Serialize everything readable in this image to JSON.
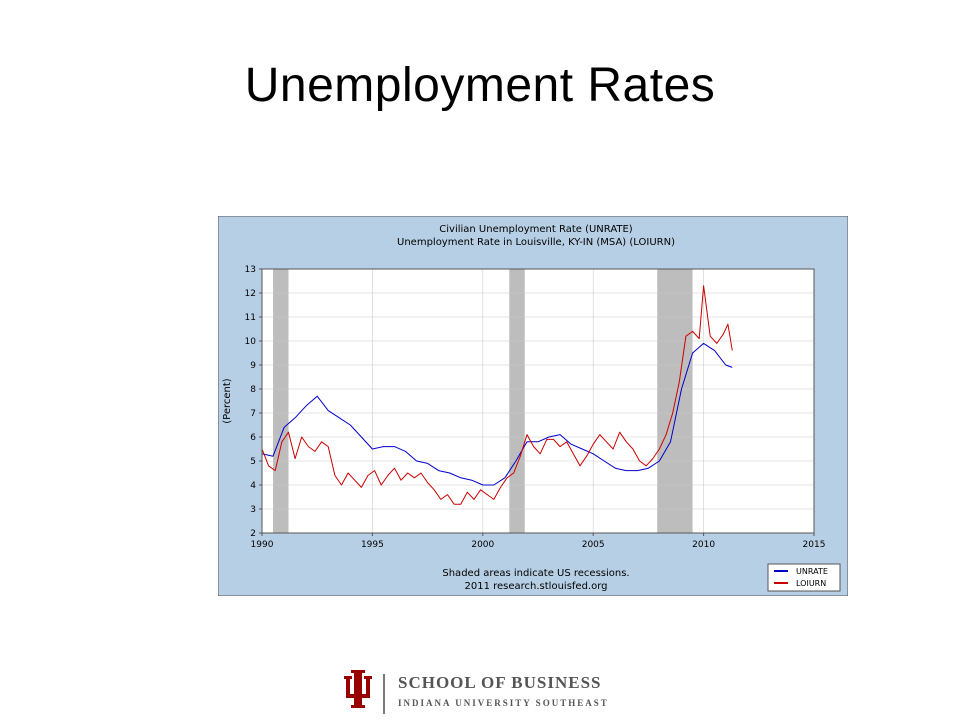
{
  "slide": {
    "title": "Unemployment Rates"
  },
  "colors": {
    "chart_bg": "#b7cfe5",
    "plot_bg": "#ffffff",
    "recession": "#bdbdbd",
    "unrate": "#0000cc",
    "loiurn": "#cc0000",
    "logo_red": "#990000"
  },
  "footer": {
    "logo_line1": "SCHOOL OF BUSINESS",
    "logo_line2": "INDIANA UNIVERSITY SOUTHEAST",
    "logo_icon": "iu-trident-icon"
  },
  "chart_data": {
    "type": "line",
    "title": "Civilian Unemployment Rate (UNRATE)",
    "subtitle": "Unemployment Rate in Louisville, KY-IN (MSA) (LOIURN)",
    "ylabel": "(Percent)",
    "xlabel": "",
    "xlim": [
      1990,
      2015
    ],
    "ylim": [
      2,
      13
    ],
    "x_ticks": [
      "1990",
      "1995",
      "2000",
      "2005",
      "2010",
      "2015"
    ],
    "y_ticks": [
      "2",
      "3",
      "4",
      "5",
      "6",
      "7",
      "8",
      "9",
      "10",
      "11",
      "12",
      "13"
    ],
    "grid": true,
    "legend_position": "bottom-right",
    "note_line1": "Shaded areas indicate US recessions.",
    "note_line2": "2011 research.stlouisfed.org",
    "recessions": [
      [
        1990.5,
        1991.2
      ],
      [
        2001.2,
        2001.9
      ],
      [
        2007.9,
        2009.5
      ]
    ],
    "series": [
      {
        "name": "UNRATE",
        "color": "#0000cc",
        "x": [
          1990.0,
          1990.5,
          1991.0,
          1991.5,
          1992.0,
          1992.5,
          1993.0,
          1993.5,
          1994.0,
          1994.5,
          1995.0,
          1995.5,
          1996.0,
          1996.5,
          1997.0,
          1997.5,
          1998.0,
          1998.5,
          1999.0,
          1999.5,
          2000.0,
          2000.5,
          2001.0,
          2001.5,
          2002.0,
          2002.5,
          2003.0,
          2003.5,
          2004.0,
          2004.5,
          2005.0,
          2005.5,
          2006.0,
          2006.5,
          2007.0,
          2007.5,
          2008.0,
          2008.5,
          2009.0,
          2009.5,
          2010.0,
          2010.5,
          2011.0,
          2011.3
        ],
        "values": [
          5.3,
          5.2,
          6.4,
          6.8,
          7.3,
          7.7,
          7.1,
          6.8,
          6.5,
          6.0,
          5.5,
          5.6,
          5.6,
          5.4,
          5.0,
          4.9,
          4.6,
          4.5,
          4.3,
          4.2,
          4.0,
          4.0,
          4.3,
          5.0,
          5.8,
          5.8,
          6.0,
          6.1,
          5.7,
          5.5,
          5.3,
          5.0,
          4.7,
          4.6,
          4.6,
          4.7,
          5.0,
          5.8,
          8.0,
          9.5,
          9.9,
          9.6,
          9.0,
          8.9
        ]
      },
      {
        "name": "LOIURN",
        "color": "#cc0000",
        "x": [
          1990.0,
          1990.3,
          1990.6,
          1990.9,
          1991.2,
          1991.5,
          1991.8,
          1992.1,
          1992.4,
          1992.7,
          1993.0,
          1993.3,
          1993.6,
          1993.9,
          1994.2,
          1994.5,
          1994.8,
          1995.1,
          1995.4,
          1995.7,
          1996.0,
          1996.3,
          1996.6,
          1996.9,
          1997.2,
          1997.5,
          1997.8,
          1998.1,
          1998.4,
          1998.7,
          1999.0,
          1999.3,
          1999.6,
          1999.9,
          2000.2,
          2000.5,
          2000.8,
          2001.1,
          2001.4,
          2001.7,
          2002.0,
          2002.3,
          2002.6,
          2002.9,
          2003.2,
          2003.5,
          2003.8,
          2004.1,
          2004.4,
          2004.7,
          2005.0,
          2005.3,
          2005.6,
          2005.9,
          2006.2,
          2006.5,
          2006.8,
          2007.1,
          2007.4,
          2007.7,
          2008.0,
          2008.3,
          2008.6,
          2008.9,
          2009.2,
          2009.5,
          2009.8,
          2010.0,
          2010.3,
          2010.6,
          2010.9,
          2011.1,
          2011.3
        ],
        "values": [
          5.5,
          4.8,
          4.6,
          5.8,
          6.2,
          5.1,
          6.0,
          5.6,
          5.4,
          5.8,
          5.6,
          4.4,
          4.0,
          4.5,
          4.2,
          3.9,
          4.4,
          4.6,
          4.0,
          4.4,
          4.7,
          4.2,
          4.5,
          4.3,
          4.5,
          4.1,
          3.8,
          3.4,
          3.6,
          3.2,
          3.2,
          3.7,
          3.4,
          3.8,
          3.6,
          3.4,
          3.9,
          4.3,
          4.5,
          5.2,
          6.1,
          5.6,
          5.3,
          5.9,
          5.9,
          5.6,
          5.8,
          5.3,
          4.8,
          5.2,
          5.7,
          6.1,
          5.8,
          5.5,
          6.2,
          5.8,
          5.5,
          5.0,
          4.8,
          5.1,
          5.5,
          6.1,
          7.0,
          8.3,
          10.2,
          10.4,
          10.1,
          12.3,
          10.2,
          9.9,
          10.3,
          10.7,
          9.6
        ]
      }
    ]
  }
}
